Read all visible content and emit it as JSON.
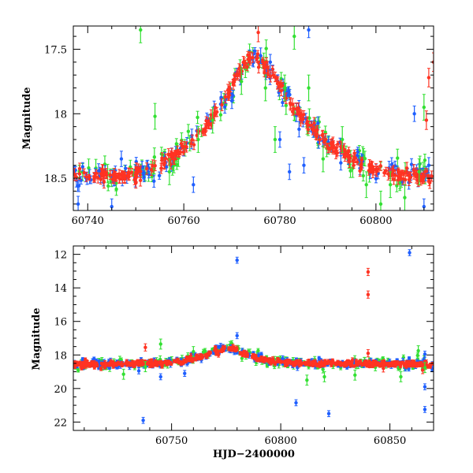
{
  "chart_data": [
    {
      "type": "scatter",
      "panel": "top",
      "title": "",
      "xlabel": "",
      "ylabel": "Magnitude",
      "xlim": [
        60737,
        60812
      ],
      "ylim": [
        18.75,
        17.32
      ],
      "y_inverted": true,
      "x_ticks": [
        "60740",
        "60760",
        "60780",
        "60800"
      ],
      "y_ticks": [
        "17.5",
        "18",
        "18.5"
      ],
      "series_colors": {
        "red": "#ff3322",
        "blue": "#1f5fff",
        "green": "#33e033"
      },
      "red_trend": [
        [
          60737,
          18.48
        ],
        [
          60745,
          18.48
        ],
        [
          60750,
          18.47
        ],
        [
          60755,
          18.4
        ],
        [
          60760,
          18.27
        ],
        [
          60765,
          18.08
        ],
        [
          60768,
          17.92
        ],
        [
          60771,
          17.7
        ],
        [
          60773,
          17.6
        ],
        [
          60775,
          17.56
        ],
        [
          60777,
          17.62
        ],
        [
          60779,
          17.73
        ],
        [
          60782,
          17.9
        ],
        [
          60785,
          18.05
        ],
        [
          60790,
          18.23
        ],
        [
          60795,
          18.35
        ],
        [
          60800,
          18.43
        ],
        [
          60805,
          18.47
        ],
        [
          60812,
          18.49
        ]
      ],
      "red_outliers": [
        [
          60775.5,
          17.37
        ],
        [
          60811,
          17.72
        ],
        [
          60810.5,
          18.05
        ],
        [
          60812,
          17.6
        ]
      ],
      "blue_outliers": [
        [
          60738,
          18.7
        ],
        [
          60745,
          18.72
        ],
        [
          60747,
          18.35
        ],
        [
          60762,
          18.55
        ],
        [
          60768,
          18.98
        ],
        [
          60770,
          17.9
        ],
        [
          60776,
          17.55
        ],
        [
          60778,
          17.6
        ],
        [
          60780,
          18.2
        ],
        [
          60782,
          18.45
        ],
        [
          60784,
          18.12
        ],
        [
          60785,
          18.4
        ],
        [
          60786,
          17.35
        ],
        [
          60808,
          18.0
        ],
        [
          60810,
          18.72
        ],
        [
          60811,
          18.4
        ]
      ],
      "green_outliers": [
        [
          60751,
          17.35
        ],
        [
          60754,
          18.02
        ],
        [
          60757,
          18.45
        ],
        [
          60763,
          18.2
        ],
        [
          60766,
          18.05
        ],
        [
          60772,
          17.75
        ],
        [
          60777,
          17.8
        ],
        [
          60779,
          18.2
        ],
        [
          60781,
          17.8
        ],
        [
          60783,
          17.4
        ],
        [
          60786,
          17.8
        ],
        [
          60789,
          18.35
        ],
        [
          60793,
          18.2
        ],
        [
          60798,
          18.55
        ],
        [
          60801,
          18.7
        ],
        [
          60803,
          18.55
        ],
        [
          60806,
          18.65
        ],
        [
          60809,
          18.45
        ],
        [
          60810,
          17.95
        ]
      ]
    },
    {
      "type": "scatter",
      "panel": "bottom",
      "title": "",
      "xlabel": "HJD−2400000",
      "ylabel": "Magnitude",
      "xlim": [
        60705,
        60870
      ],
      "ylim": [
        22.5,
        11.5
      ],
      "y_inverted": true,
      "x_ticks": [
        "60750",
        "60800",
        "60850"
      ],
      "y_ticks": [
        "12",
        "14",
        "16",
        "18",
        "20",
        "22"
      ],
      "series_colors": {
        "red": "#ff3322",
        "blue": "#1f5fff",
        "green": "#33e033"
      },
      "red_trend": [
        [
          60708,
          18.53
        ],
        [
          60720,
          18.55
        ],
        [
          60740,
          18.52
        ],
        [
          60755,
          18.38
        ],
        [
          60765,
          18.05
        ],
        [
          60772,
          17.7
        ],
        [
          60775,
          17.55
        ],
        [
          60778,
          17.6
        ],
        [
          60783,
          17.95
        ],
        [
          60790,
          18.25
        ],
        [
          60800,
          18.43
        ],
        [
          60815,
          18.5
        ],
        [
          60840,
          18.52
        ],
        [
          60866,
          18.52
        ]
      ],
      "red_outliers": [
        [
          60840,
          13.05
        ],
        [
          60840,
          14.4
        ],
        [
          60840,
          17.9
        ],
        [
          60738,
          17.55
        ],
        [
          60847,
          18.8
        ],
        [
          60865,
          18.9
        ]
      ],
      "blue_outliers": [
        [
          60780,
          12.35
        ],
        [
          60859,
          11.9
        ],
        [
          60737,
          21.9
        ],
        [
          60807,
          20.85
        ],
        [
          60822,
          21.5
        ],
        [
          60866,
          21.25
        ],
        [
          60866,
          19.9
        ],
        [
          60780,
          16.85
        ],
        [
          60866,
          17.95
        ],
        [
          60745,
          19.3
        ],
        [
          60756,
          19.1
        ],
        [
          60735,
          18.95
        ]
      ],
      "green_outliers": [
        [
          60745,
          17.35
        ],
        [
          60760,
          17.8
        ],
        [
          60728,
          19.15
        ],
        [
          60738,
          18.7
        ],
        [
          60812,
          19.5
        ],
        [
          60820,
          19.3
        ],
        [
          60834,
          19.2
        ],
        [
          60855,
          19.3
        ],
        [
          60863,
          17.75
        ],
        [
          60866,
          18.75
        ]
      ]
    }
  ]
}
